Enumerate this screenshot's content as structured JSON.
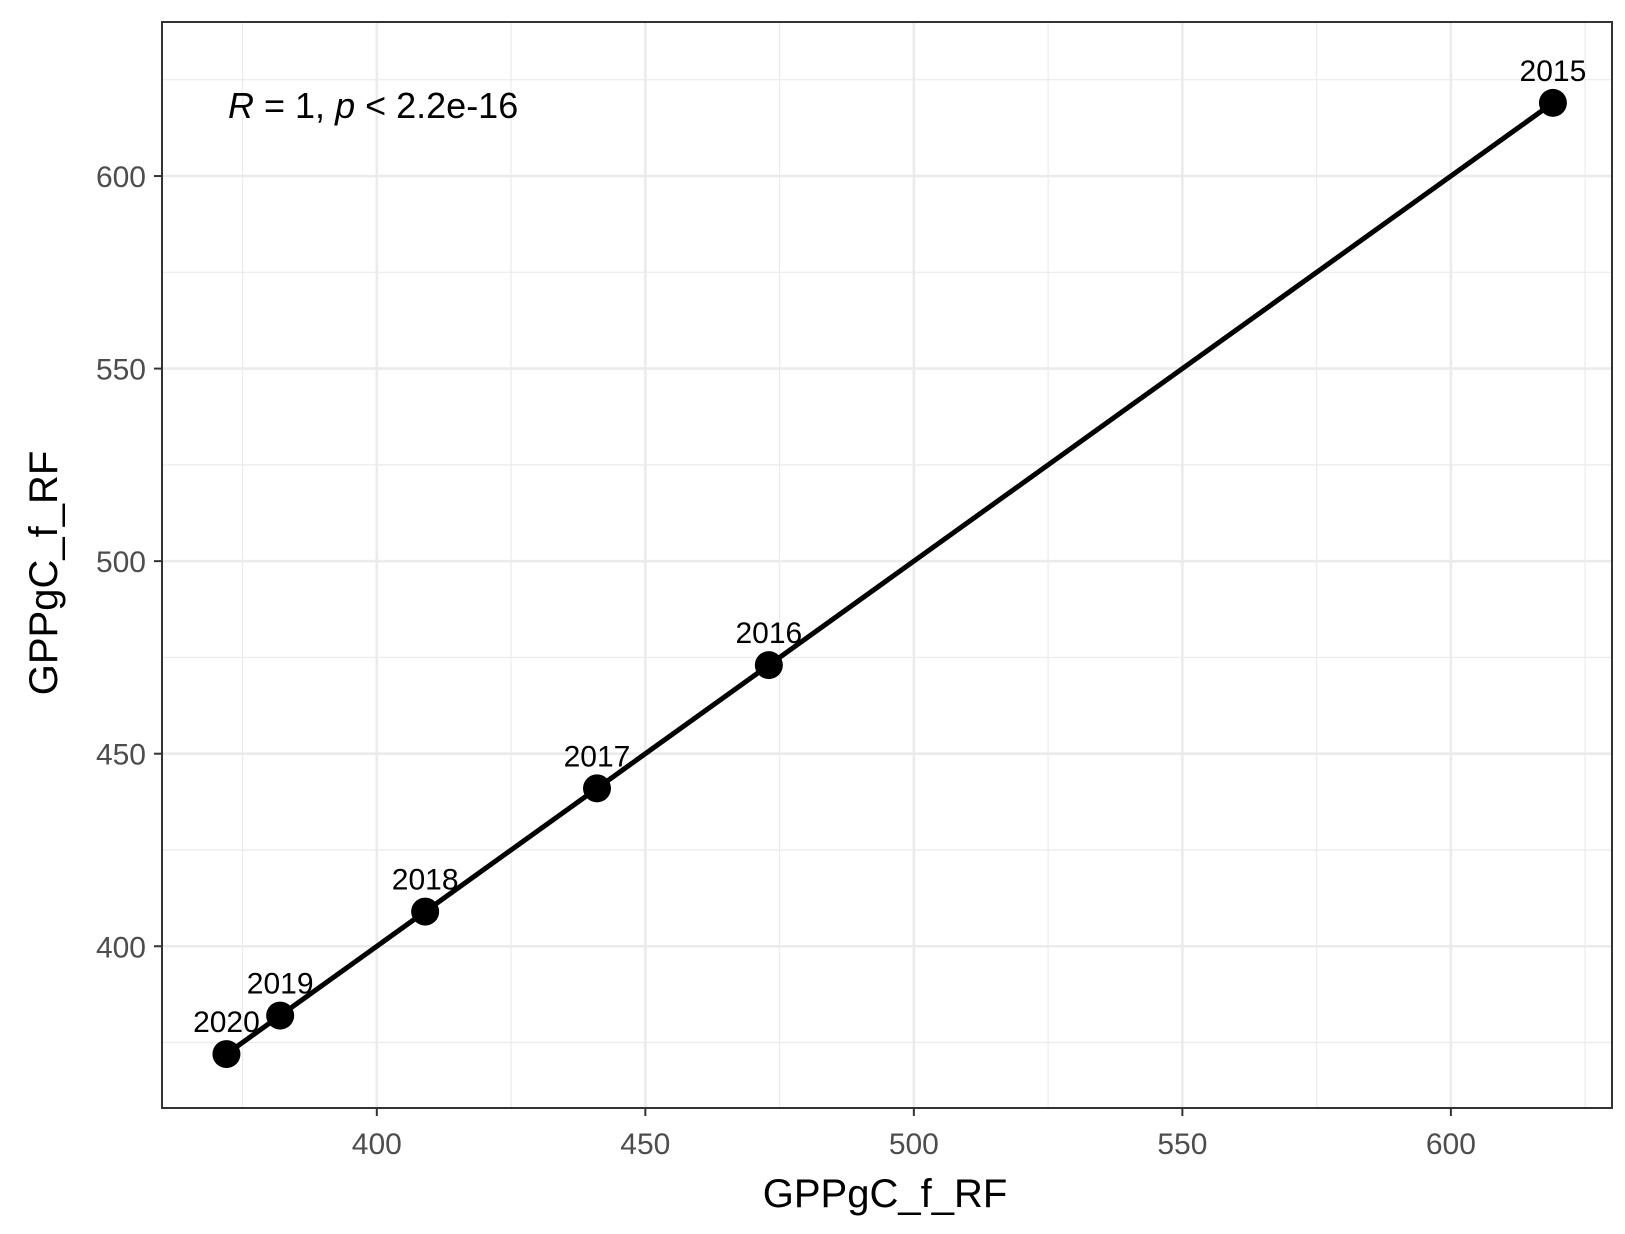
{
  "chart_data": {
    "type": "scatter",
    "xlabel": "GPPgC_f_RF",
    "ylabel": "GPPgC_f_RF",
    "xlim": [
      360,
      630
    ],
    "ylim": [
      358,
      640
    ],
    "x_ticks": [
      400,
      450,
      500,
      550,
      600
    ],
    "y_ticks": [
      400,
      450,
      500,
      550,
      600
    ],
    "x_minor": [
      375,
      425,
      475,
      525,
      575,
      625
    ],
    "y_minor": [
      375,
      425,
      475,
      525,
      575,
      625
    ],
    "grid": true,
    "annotation": {
      "r_symbol": "R",
      "r_text": " = 1, ",
      "p_symbol": "p",
      "p_text": " < 2.2e-16"
    },
    "points": [
      {
        "label": "2015",
        "x": 619,
        "y": 619
      },
      {
        "label": "2016",
        "x": 473,
        "y": 473
      },
      {
        "label": "2017",
        "x": 441,
        "y": 441
      },
      {
        "label": "2018",
        "x": 409,
        "y": 409
      },
      {
        "label": "2019",
        "x": 382,
        "y": 382
      },
      {
        "label": "2020",
        "x": 372,
        "y": 372
      }
    ],
    "fit_line": {
      "x": [
        372,
        619
      ],
      "y": [
        372,
        619
      ]
    },
    "colors": {
      "point": "#000000",
      "line": "#000000",
      "grid": "#ebebeb",
      "panel_border": "#333333"
    }
  }
}
